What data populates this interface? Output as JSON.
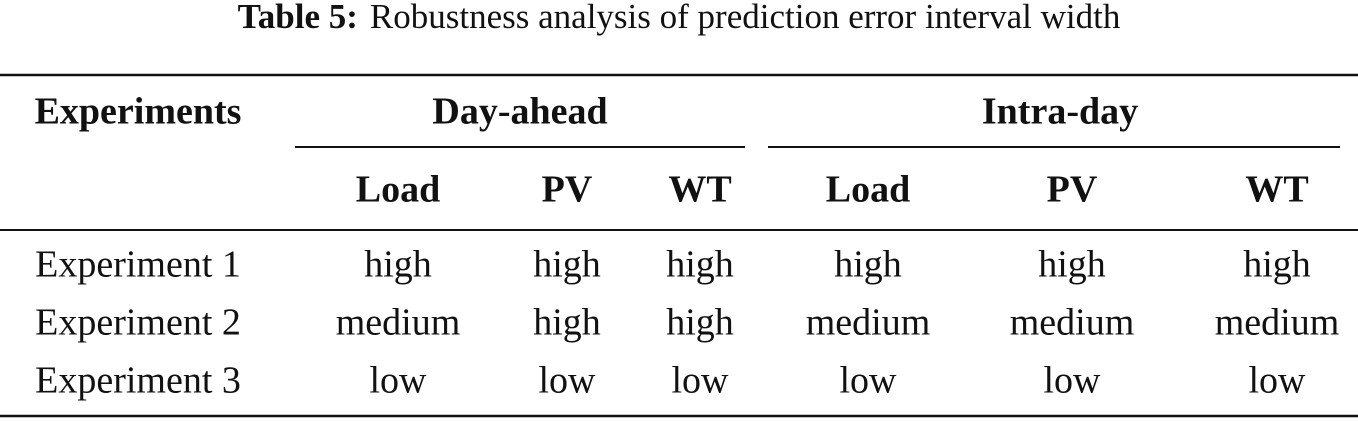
{
  "caption": {
    "label": "Table 5:",
    "text": "Robustness analysis of prediction error interval width"
  },
  "table": {
    "header": {
      "first": "Experiments",
      "groups": [
        "Day-ahead",
        "Intra-day"
      ],
      "columns": [
        "Load",
        "PV",
        "WT",
        "Load",
        "PV",
        "WT"
      ]
    },
    "rows": [
      [
        "Experiment 1",
        "high",
        "high",
        "high",
        "high",
        "high",
        "high"
      ],
      [
        "Experiment 2",
        "medium",
        "high",
        "high",
        "medium",
        "medium",
        "medium"
      ],
      [
        "Experiment 3",
        "low",
        "low",
        "low",
        "low",
        "low",
        "low"
      ]
    ]
  }
}
